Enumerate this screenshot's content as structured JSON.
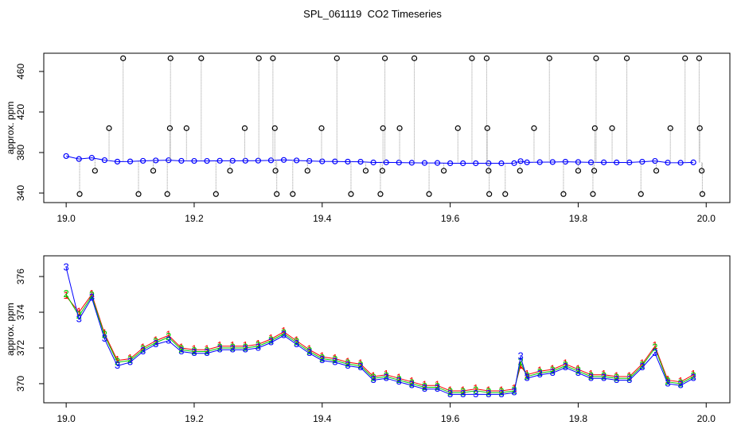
{
  "chart_data": [
    {
      "type": "scatter",
      "title": "SPL_061119  CO2 Timeseries",
      "ylabel": "approx. ppm",
      "xlim": [
        18.965,
        20.037
      ],
      "ylim": [
        330.6,
        478
      ],
      "xticks": [
        {
          "value": 19,
          "label": "19.0"
        },
        19.2,
        19.4,
        19.6,
        19.8,
        {
          "value": 20,
          "label": "20.0"
        }
      ],
      "yticks": [
        340,
        380,
        420,
        460
      ],
      "series": [
        {
          "color": "#0000ff",
          "x": [
            19.0,
            19.02,
            19.04,
            19.06,
            19.08,
            19.1,
            19.12,
            19.14,
            19.16,
            19.18,
            19.2,
            19.22,
            19.24,
            19.26,
            19.28,
            19.3,
            19.32,
            19.34,
            19.36,
            19.38,
            19.4,
            19.42,
            19.44,
            19.46,
            19.48,
            19.5,
            19.52,
            19.54,
            19.56,
            19.58,
            19.6,
            19.62,
            19.64,
            19.66,
            19.68,
            19.7,
            19.71,
            19.72,
            19.74,
            19.76,
            19.78,
            19.8,
            19.82,
            19.84,
            19.86,
            19.88,
            19.9,
            19.92,
            19.94,
            19.96,
            19.98
          ],
          "values": [
            376.5,
            373.6,
            374.8,
            372.5,
            371.0,
            371.2,
            371.8,
            372.2,
            372.4,
            371.8,
            371.7,
            371.7,
            371.9,
            371.9,
            371.9,
            372.0,
            372.3,
            372.7,
            372.2,
            371.7,
            371.3,
            371.2,
            371.0,
            370.9,
            370.2,
            370.3,
            370.1,
            369.9,
            369.7,
            369.7,
            369.4,
            369.4,
            369.4,
            369.4,
            369.4,
            369.5,
            371.5,
            370.3,
            370.5,
            370.6,
            370.9,
            370.6,
            370.3,
            370.3,
            370.2,
            370.2,
            370.9,
            371.7,
            370.0,
            369.9,
            370.3
          ]
        },
        {
          "color": "#000000",
          "connector_color": "#999999",
          "x": [
            19.021,
            19.045,
            19.067,
            19.089,
            19.113,
            19.136,
            19.158,
            19.162,
            19.163,
            19.188,
            19.211,
            19.234,
            19.256,
            19.279,
            19.301,
            19.323,
            19.326,
            19.327,
            19.329,
            19.354,
            19.377,
            19.399,
            19.423,
            19.445,
            19.468,
            19.491,
            19.494,
            19.495,
            19.498,
            19.521,
            19.544,
            19.567,
            19.59,
            19.612,
            19.634,
            19.657,
            19.658,
            19.66,
            19.661,
            19.686,
            19.709,
            19.731,
            19.755,
            19.777,
            19.8,
            19.823,
            19.825,
            19.826,
            19.828,
            19.853,
            19.876,
            19.898,
            19.922,
            19.944,
            19.967,
            19.989,
            19.99,
            19.993,
            19.994
          ],
          "values": [
            339,
            362,
            404,
            473,
            339,
            362,
            339,
            404,
            473,
            404,
            473,
            339,
            362,
            404,
            473,
            473,
            404,
            362,
            339,
            339,
            362,
            404,
            473,
            339,
            362,
            339,
            362,
            404,
            473,
            404,
            473,
            339,
            362,
            404,
            473,
            473,
            404,
            362,
            339,
            339,
            362,
            404,
            473,
            339,
            362,
            339,
            362,
            404,
            473,
            404,
            473,
            339,
            362,
            404,
            473,
            473,
            404,
            362,
            339
          ]
        }
      ]
    },
    {
      "type": "line",
      "ylabel": "approx. ppm",
      "xlim": [
        18.965,
        20.037
      ],
      "ylim": [
        368.93,
        377.16
      ],
      "xticks": [
        {
          "value": 19,
          "label": "19.0"
        },
        19.2,
        19.4,
        19.6,
        19.8,
        {
          "value": 20,
          "label": "20.0"
        }
      ],
      "yticks": [
        370,
        372,
        374,
        376
      ],
      "series": [
        {
          "marker": "1",
          "color": "#ff0000",
          "x": [
            19.0,
            19.02,
            19.04,
            19.06,
            19.08,
            19.1,
            19.12,
            19.14,
            19.16,
            19.18,
            19.2,
            19.22,
            19.24,
            19.26,
            19.28,
            19.3,
            19.32,
            19.34,
            19.36,
            19.38,
            19.4,
            19.42,
            19.44,
            19.46,
            19.48,
            19.5,
            19.52,
            19.54,
            19.56,
            19.58,
            19.6,
            19.62,
            19.64,
            19.66,
            19.68,
            19.7,
            19.71,
            19.72,
            19.74,
            19.76,
            19.78,
            19.8,
            19.82,
            19.84,
            19.86,
            19.88,
            19.9,
            19.92,
            19.94,
            19.96,
            19.98
          ],
          "values": [
            374.9,
            374.0,
            375.0,
            372.8,
            371.3,
            371.4,
            372.0,
            372.4,
            372.7,
            372.0,
            371.9,
            371.9,
            372.1,
            372.1,
            372.1,
            372.2,
            372.5,
            372.9,
            372.4,
            371.9,
            371.5,
            371.4,
            371.2,
            371.1,
            370.4,
            370.5,
            370.3,
            370.1,
            369.9,
            369.9,
            369.6,
            369.6,
            369.7,
            369.6,
            369.6,
            369.7,
            371.0,
            370.5,
            370.7,
            370.8,
            371.1,
            370.8,
            370.5,
            370.5,
            370.4,
            370.4,
            371.1,
            372.1,
            370.2,
            370.1,
            370.5
          ]
        },
        {
          "marker": "2",
          "color": "#00cd00",
          "x": [
            19.0,
            19.02,
            19.04,
            19.06,
            19.08,
            19.1,
            19.12,
            19.14,
            19.16,
            19.18,
            19.2,
            19.22,
            19.24,
            19.26,
            19.28,
            19.3,
            19.32,
            19.34,
            19.36,
            19.38,
            19.4,
            19.42,
            19.44,
            19.46,
            19.48,
            19.5,
            19.52,
            19.54,
            19.56,
            19.58,
            19.6,
            19.62,
            19.64,
            19.66,
            19.68,
            19.7,
            19.71,
            19.72,
            19.74,
            19.76,
            19.78,
            19.8,
            19.82,
            19.84,
            19.86,
            19.88,
            19.9,
            19.92,
            19.94,
            19.96,
            19.98
          ],
          "values": [
            375.0,
            373.8,
            374.9,
            372.7,
            371.2,
            371.3,
            371.9,
            372.3,
            372.6,
            371.9,
            371.8,
            371.8,
            372.0,
            372.0,
            372.0,
            372.1,
            372.4,
            372.8,
            372.3,
            371.8,
            371.4,
            371.3,
            371.1,
            371.0,
            370.3,
            370.4,
            370.2,
            370.0,
            369.8,
            369.8,
            369.5,
            369.5,
            369.6,
            369.5,
            369.5,
            369.6,
            371.2,
            370.4,
            370.6,
            370.7,
            371.0,
            370.7,
            370.4,
            370.4,
            370.3,
            370.3,
            371.0,
            372.0,
            370.1,
            370.0,
            370.4
          ]
        },
        {
          "marker": "3",
          "color": "#0000ff",
          "x": [
            19.0,
            19.02,
            19.04,
            19.06,
            19.08,
            19.1,
            19.12,
            19.14,
            19.16,
            19.18,
            19.2,
            19.22,
            19.24,
            19.26,
            19.28,
            19.3,
            19.32,
            19.34,
            19.36,
            19.38,
            19.4,
            19.42,
            19.44,
            19.46,
            19.48,
            19.5,
            19.52,
            19.54,
            19.56,
            19.58,
            19.6,
            19.62,
            19.64,
            19.66,
            19.68,
            19.7,
            19.71,
            19.72,
            19.74,
            19.76,
            19.78,
            19.8,
            19.82,
            19.84,
            19.86,
            19.88,
            19.9,
            19.92,
            19.94,
            19.96,
            19.98
          ],
          "values": [
            376.5,
            373.6,
            374.8,
            372.5,
            371.0,
            371.2,
            371.8,
            372.2,
            372.4,
            371.8,
            371.7,
            371.7,
            371.9,
            371.9,
            371.9,
            372.0,
            372.3,
            372.7,
            372.2,
            371.7,
            371.3,
            371.2,
            371.0,
            370.9,
            370.2,
            370.3,
            370.1,
            369.9,
            369.7,
            369.7,
            369.4,
            369.4,
            369.4,
            369.4,
            369.4,
            369.5,
            371.5,
            370.3,
            370.5,
            370.6,
            370.9,
            370.6,
            370.3,
            370.3,
            370.2,
            370.2,
            370.9,
            371.7,
            370.0,
            369.9,
            370.3
          ]
        }
      ]
    }
  ]
}
